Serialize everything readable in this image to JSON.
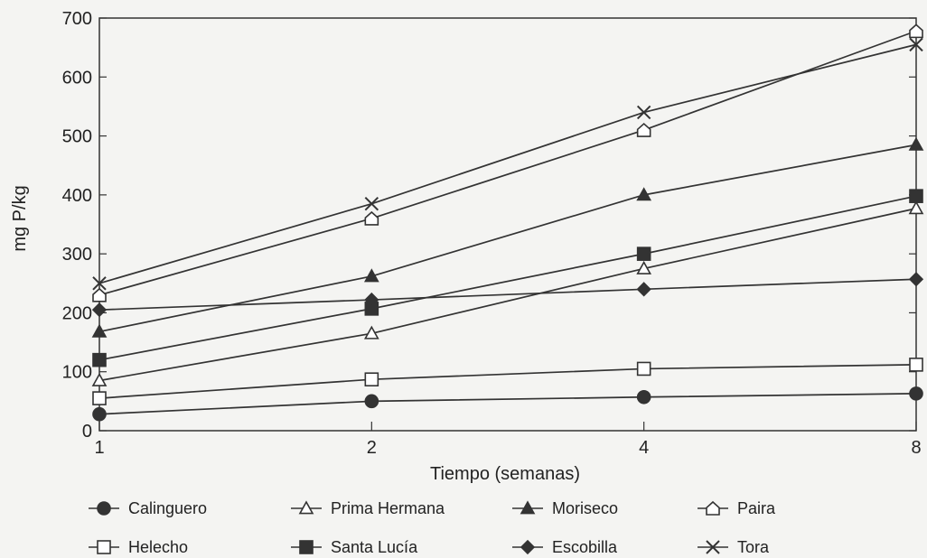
{
  "chart_data": {
    "type": "line",
    "xlabel": "Tiempo (semanas)",
    "ylabel": "mg P/kg",
    "x": [
      1,
      2,
      4,
      8
    ],
    "x_scale": "log",
    "xlim": [
      1,
      8
    ],
    "ylim": [
      0,
      700
    ],
    "yticks": [
      0,
      100,
      200,
      300,
      400,
      500,
      600,
      700
    ],
    "grid": false,
    "legend_position": "bottom",
    "series": [
      {
        "name": "Calinguero",
        "marker": "circle-filled",
        "values": [
          28,
          50,
          57,
          63
        ]
      },
      {
        "name": "Prima Hermana",
        "marker": "triangle-open",
        "values": [
          85,
          165,
          275,
          377
        ]
      },
      {
        "name": "Moriseco",
        "marker": "triangle-filled",
        "values": [
          168,
          262,
          400,
          485
        ]
      },
      {
        "name": "Paira",
        "marker": "pentagon-open",
        "values": [
          230,
          360,
          510,
          678
        ]
      },
      {
        "name": "Helecho",
        "marker": "square-open",
        "values": [
          55,
          87,
          105,
          112
        ]
      },
      {
        "name": "Santa Lucía",
        "marker": "square-filled",
        "values": [
          120,
          207,
          300,
          398
        ]
      },
      {
        "name": "Escobilla",
        "marker": "diamond-filled",
        "values": [
          205,
          222,
          240,
          257
        ]
      },
      {
        "name": "Tora",
        "marker": "x",
        "values": [
          250,
          385,
          540,
          655
        ]
      }
    ]
  }
}
